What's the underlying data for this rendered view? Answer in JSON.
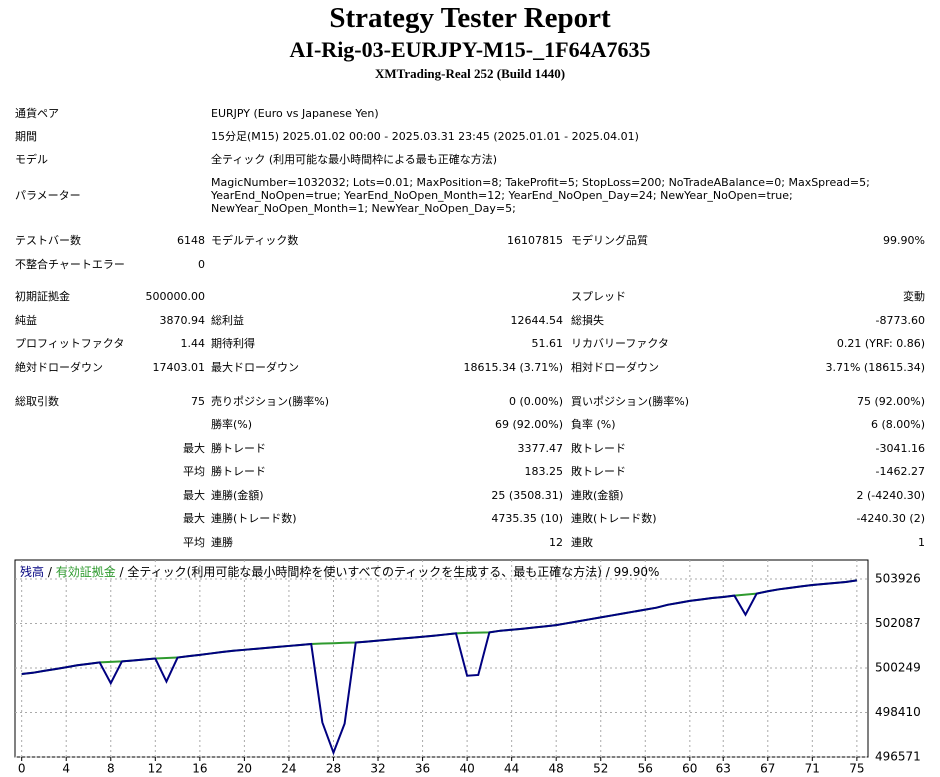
{
  "header": {
    "title": "Strategy Tester Report",
    "subtitle": "AI-Rig-03-EURJPY-M15-_1F64A7635",
    "build": "XMTrading-Real 252 (Build 1440)"
  },
  "info": [
    {
      "label": "通貨ペア",
      "lines": [
        "EURJPY (Euro vs Japanese Yen)"
      ]
    },
    {
      "label": "期間",
      "lines": [
        "15分足(M15) 2025.01.02 00:00 - 2025.03.31 23:45 (2025.01.01 - 2025.04.01)"
      ]
    },
    {
      "label": "モデル",
      "lines": [
        "全ティック (利用可能な最小時間枠による最も正確な方法)"
      ]
    },
    {
      "label": "パラメーター",
      "lines": [
        "MagicNumber=1032032; Lots=0.01; MaxPosition=8; TakeProfit=5; StopLoss=200; NoTradeABalance=0; MaxSpread=5;",
        "YearEnd_NoOpen=true; YearEnd_NoOpen_Month=12; YearEnd_NoOpen_Day=24; NewYear_NoOpen=true;",
        "NewYear_NoOpen_Month=1; NewYear_NoOpen_Day=5;"
      ]
    }
  ],
  "stats": [
    [
      "テストバー数",
      "6148",
      "モデルティック数",
      "16107815",
      "モデリング品質",
      "99.90%"
    ],
    [
      "不整合チャートエラー",
      "0",
      null,
      null,
      null,
      null
    ],
    [
      "初期証拠金",
      "500000.00",
      null,
      null,
      "スプレッド",
      "変動"
    ],
    [
      "純益",
      "3870.94",
      "総利益",
      "12644.54",
      "総損失",
      "-8773.60"
    ],
    [
      "プロフィットファクタ",
      "1.44",
      "期待利得",
      "51.61",
      "リカバリーファクタ",
      "0.21 (YRF: 0.86)"
    ],
    [
      "絶対ドローダウン",
      "17403.01",
      "最大ドローダウン",
      "18615.34 (3.71%)",
      "相対ドローダウン",
      "3.71% (18615.34)"
    ],
    [
      "総取引数",
      "75",
      "売りポジション(勝率%)",
      "0 (0.00%)",
      "買いポジション(勝率%)",
      "75 (92.00%)"
    ],
    [
      null,
      null,
      "勝率(%)",
      "69 (92.00%)",
      "負率 (%)",
      "6 (8.00%)"
    ],
    [
      null,
      "最大",
      "勝トレード",
      "3377.47",
      "敗トレード",
      "-3041.16"
    ],
    [
      null,
      "平均",
      "勝トレード",
      "183.25",
      "敗トレード",
      "-1462.27"
    ],
    [
      null,
      "最大",
      "連勝(金額)",
      "25 (3508.31)",
      "連敗(金額)",
      "2 (-4240.30)"
    ],
    [
      null,
      "最大",
      "連勝(トレード数)",
      "4735.35 (10)",
      "連敗(トレード数)",
      "-4240.30 (2)"
    ],
    [
      null,
      "平均",
      "連勝",
      "12",
      "連敗",
      "1"
    ]
  ],
  "chart_data": {
    "type": "line",
    "legend_note": " / 全ティック(利用可能な最小時間枠を使いすべてのティックを生成する、最も正確な方法) / 99.90%",
    "x": [
      0,
      1,
      2,
      3,
      4,
      5,
      6,
      7,
      8,
      9,
      10,
      11,
      12,
      13,
      14,
      15,
      16,
      17,
      18,
      19,
      20,
      21,
      22,
      23,
      24,
      25,
      26,
      27,
      28,
      29,
      30,
      31,
      32,
      33,
      34,
      35,
      36,
      37,
      38,
      39,
      40,
      41,
      42,
      43,
      44,
      45,
      46,
      47,
      48,
      49,
      50,
      51,
      52,
      53,
      54,
      55,
      56,
      57,
      58,
      59,
      60,
      61,
      62,
      63,
      64,
      65,
      66,
      67,
      68,
      69,
      70,
      71,
      72,
      73,
      74,
      75
    ],
    "series": [
      {
        "name": "有効証拠金",
        "color": "#2e9a2e",
        "values": [
          500000,
          500050,
          500130,
          500200,
          500280,
          500360,
          500420,
          500480,
          500500,
          500520,
          500560,
          500600,
          500640,
          500660,
          500680,
          500740,
          500790,
          500850,
          500910,
          500960,
          501000,
          501040,
          501080,
          501120,
          501160,
          501200,
          501240,
          501260,
          501270,
          501290,
          501300,
          501340,
          501380,
          501420,
          501460,
          501500,
          501540,
          501580,
          501630,
          501680,
          501700,
          501710,
          501720,
          501790,
          501830,
          501870,
          501920,
          501970,
          502020,
          502100,
          502180,
          502260,
          502340,
          502420,
          502500,
          502580,
          502660,
          502740,
          502860,
          502940,
          503020,
          503080,
          503140,
          503180,
          503240,
          503280,
          503320,
          503420,
          503500,
          503560,
          503620,
          503680,
          503720,
          503760,
          503800,
          503871
        ]
      },
      {
        "name": "残高",
        "color": "#000080",
        "values": [
          500000,
          500050,
          500130,
          500200,
          500280,
          500360,
          500420,
          500480,
          499620,
          500520,
          500560,
          500600,
          500640,
          499690,
          500680,
          500740,
          500790,
          500850,
          500910,
          500960,
          501000,
          501040,
          501080,
          501120,
          501160,
          501200,
          501240,
          498000,
          496750,
          497950,
          501300,
          501340,
          501380,
          501420,
          501460,
          501500,
          501540,
          501580,
          501630,
          501680,
          499930,
          499960,
          501720,
          501790,
          501830,
          501870,
          501920,
          501970,
          502020,
          502100,
          502180,
          502260,
          502340,
          502420,
          502500,
          502580,
          502660,
          502740,
          502860,
          502940,
          503020,
          503080,
          503140,
          503180,
          503240,
          502450,
          503320,
          503420,
          503500,
          503560,
          503620,
          503680,
          503720,
          503760,
          503800,
          503871
        ]
      }
    ],
    "xlim": [
      -0.6,
      76
    ],
    "xticks": [
      0,
      4,
      8,
      12,
      16,
      20,
      24,
      28,
      32,
      36,
      40,
      44,
      48,
      52,
      56,
      60,
      63,
      67,
      71,
      75
    ],
    "ylim": [
      496571,
      504711
    ],
    "yticks": [
      496571,
      498410,
      500249,
      502087,
      503926
    ],
    "grid": true
  }
}
